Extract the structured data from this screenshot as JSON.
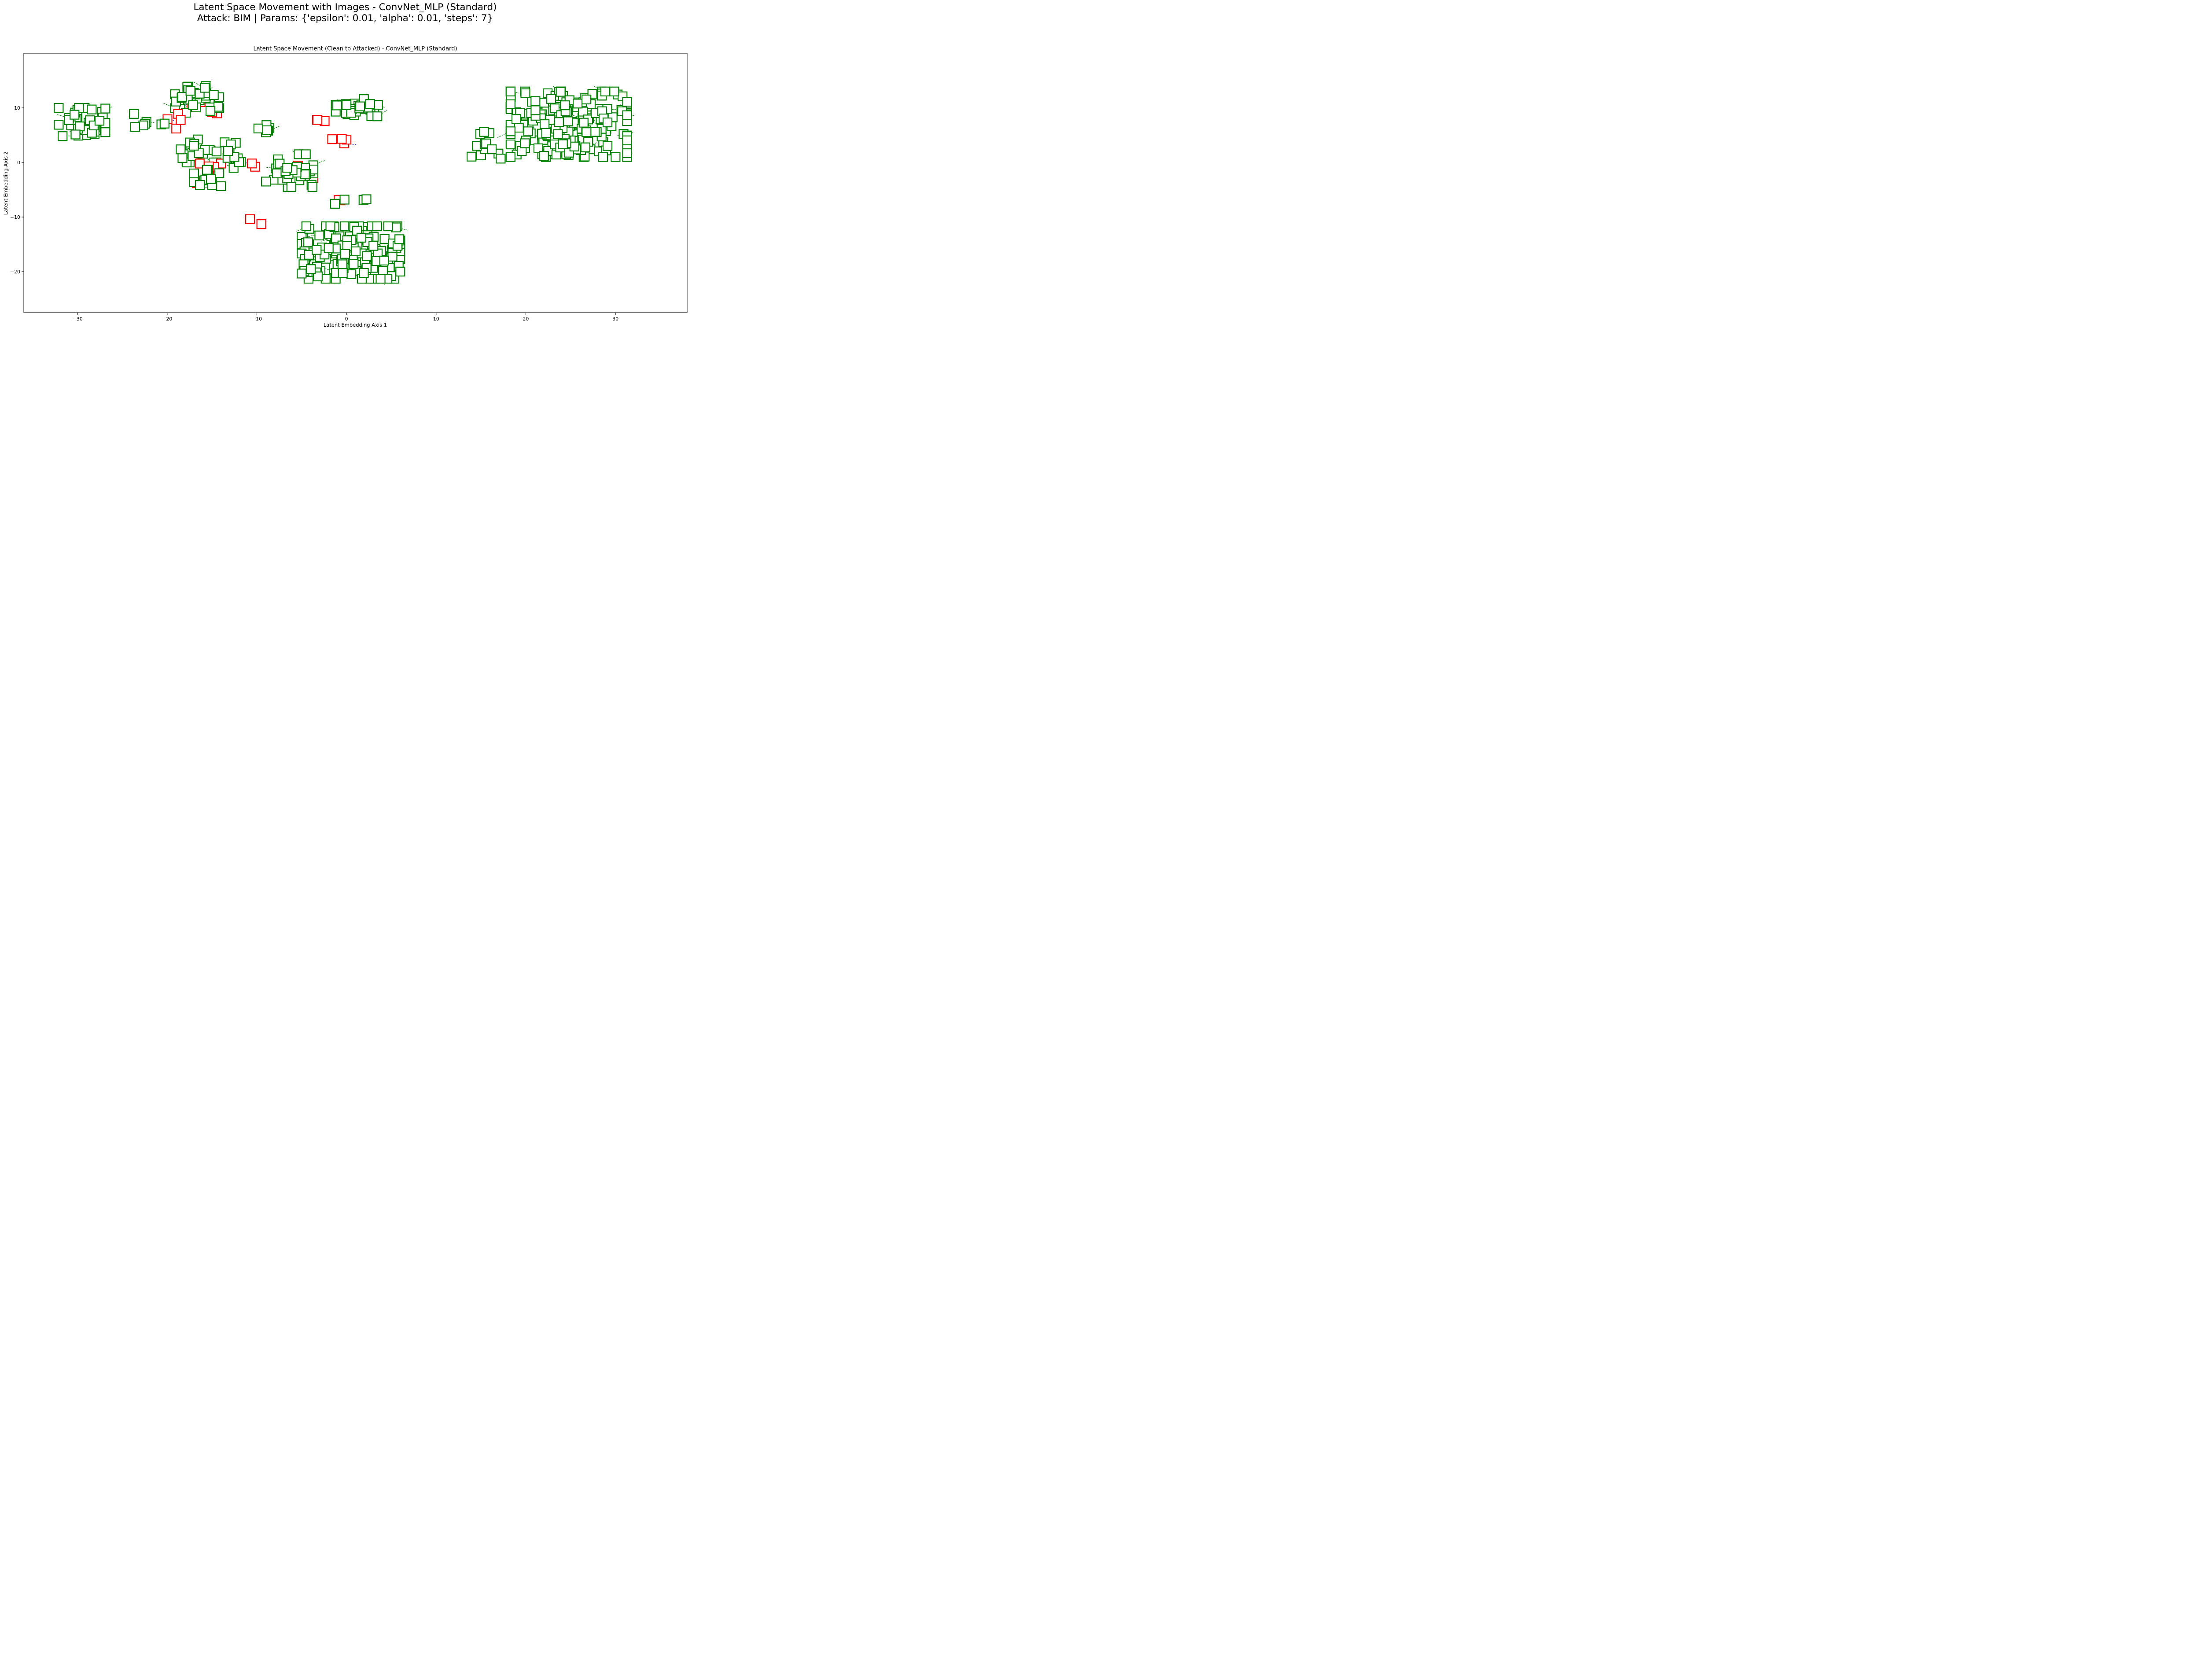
{
  "figure": {
    "suptitle_line1": "Latent Space Movement with Images - ConvNet_MLP (Standard)",
    "suptitle_line2": "Attack: BIM | Params: {'epsilon': 0.01, 'alpha': 0.01, 'steps': 7}"
  },
  "chart_data": {
    "type": "scatter",
    "title": "Latent Space Movement (Clean to Attacked) - ConvNet_MLP (Standard)",
    "xlabel": "Latent Embedding Axis 1",
    "ylabel": "Latent Embedding Axis 2",
    "xlim": [
      -36,
      38
    ],
    "ylim": [
      -27.5,
      20
    ],
    "xticks": [
      -30,
      -20,
      -10,
      0,
      10,
      20,
      30
    ],
    "yticks": [
      -20,
      -10,
      0,
      10
    ],
    "xtick_labels": [
      "−30",
      "−20",
      "−10",
      "0",
      "10",
      "20",
      "30"
    ],
    "ytick_labels": [
      "−20",
      "−10",
      "0",
      "10"
    ],
    "grid": false,
    "legend": "none",
    "colors": {
      "correct": "#008000",
      "misclassified": "#ff0000",
      "movement_line_correct": "#008000",
      "movement_line_misclassified": "#0000ff"
    },
    "clusters": [
      {
        "center": [
          -29.5,
          6.8
        ],
        "spread": [
          2.6,
          3.2
        ],
        "count": 40,
        "misclassified": 0
      },
      {
        "center": [
          -23,
          8
        ],
        "spread": [
          1.0,
          1.5
        ],
        "count": 5,
        "misclassified": 0
      },
      {
        "center": [
          -17,
          11.5
        ],
        "spread": [
          2.8,
          2.5
        ],
        "count": 38,
        "misclassified": 6
      },
      {
        "center": [
          -19.5,
          7.5
        ],
        "spread": [
          1.4,
          1.4
        ],
        "count": 6,
        "misclassified": 4
      },
      {
        "center": [
          -16.5,
          2.5
        ],
        "spread": [
          2.0,
          2.5
        ],
        "count": 22,
        "misclassified": 2
      },
      {
        "center": [
          -15.5,
          -3
        ],
        "spread": [
          1.5,
          2.8
        ],
        "count": 20,
        "misclassified": 6
      },
      {
        "center": [
          -13,
          1.5
        ],
        "spread": [
          1.3,
          2.5
        ],
        "count": 12,
        "misclassified": 0
      },
      {
        "center": [
          -10.5,
          0
        ],
        "spread": [
          0.3,
          0.8
        ],
        "count": 2,
        "misclassified": 2
      },
      {
        "center": [
          -8.5,
          6.2
        ],
        "spread": [
          1.5,
          1.0
        ],
        "count": 6,
        "misclassified": 0
      },
      {
        "center": [
          -6.5,
          -1.5
        ],
        "spread": [
          2.8,
          3.0
        ],
        "count": 40,
        "misclassified": 3
      },
      {
        "center": [
          1.2,
          9.9
        ],
        "spread": [
          2.4,
          1.7
        ],
        "count": 30,
        "misclassified": 0
      },
      {
        "center": [
          -2.5,
          8
        ],
        "spread": [
          0.8,
          0.4
        ],
        "count": 3,
        "misclassified": 3
      },
      {
        "center": [
          -0.8,
          3.8
        ],
        "spread": [
          0.8,
          1.0
        ],
        "count": 4,
        "misclassified": 4
      },
      {
        "center": [
          -1.0,
          -7
        ],
        "spread": [
          1.0,
          0.6
        ],
        "count": 4,
        "misclassified": 2
      },
      {
        "center": [
          1.8,
          -6.8
        ],
        "spread": [
          0.7,
          0.2
        ],
        "count": 2,
        "misclassified": 0
      },
      {
        "center": [
          -10.5,
          -10.5
        ],
        "spread": [
          1.0,
          0.8
        ],
        "count": 2,
        "misclassified": 2
      },
      {
        "center": [
          0.5,
          -16.5
        ],
        "spread": [
          5.5,
          4.8
        ],
        "count": 170,
        "misclassified": 3
      },
      {
        "center": [
          24.8,
          7
        ],
        "spread": [
          6.5,
          6.0
        ],
        "count": 220,
        "misclassified": 0
      },
      {
        "center": [
          15.5,
          3.5
        ],
        "spread": [
          1.7,
          2.8
        ],
        "count": 12,
        "misclassified": 0
      }
    ]
  }
}
